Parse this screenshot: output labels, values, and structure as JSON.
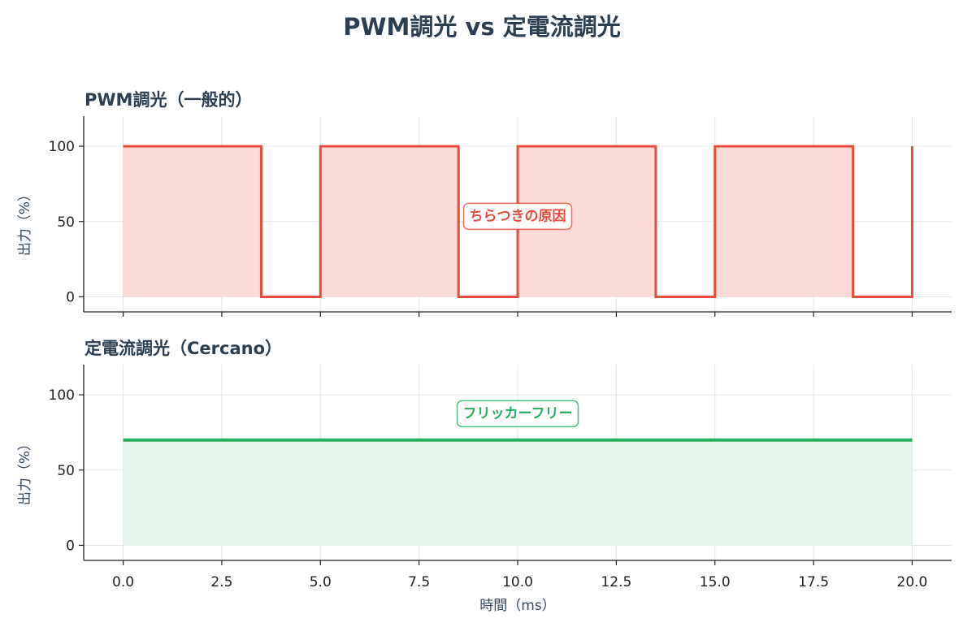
{
  "figure": {
    "title": "PWM調光 vs 定電流調光"
  },
  "chart_data": [
    {
      "type": "line",
      "title": "PWM調光（一般的）",
      "xlabel": "",
      "ylabel": "出力（%）",
      "xlim": [
        -1.0,
        21.0
      ],
      "ylim": [
        -10,
        120
      ],
      "xticks": [
        0.0,
        2.5,
        5.0,
        7.5,
        10.0,
        12.5,
        15.0,
        17.5,
        20.0
      ],
      "yticks": [
        0,
        50,
        100
      ],
      "ytick_labels": [
        "0",
        "50",
        "100"
      ],
      "grid": true,
      "series": [
        {
          "color": "#e74c3c",
          "fill": true,
          "fill_color": "#fadbd8",
          "step": true,
          "x": [
            0,
            3.5,
            3.5,
            5,
            5,
            8.5,
            8.5,
            10,
            10,
            13.5,
            13.5,
            15,
            15,
            18.5,
            18.5,
            20,
            20
          ],
          "y": [
            100,
            100,
            0,
            0,
            100,
            100,
            0,
            0,
            100,
            100,
            0,
            0,
            100,
            100,
            0,
            0,
            100
          ]
        }
      ],
      "annotation": {
        "text": "ちらつきの原因",
        "x": 10,
        "y": 54,
        "color": "#e74c3c"
      }
    },
    {
      "type": "line",
      "title": "定電流調光（Cercano）",
      "xlabel": "時間（ms）",
      "ylabel": "出力（%）",
      "xlim": [
        -1.0,
        21.0
      ],
      "ylim": [
        -10,
        120
      ],
      "xticks": [
        0.0,
        2.5,
        5.0,
        7.5,
        10.0,
        12.5,
        15.0,
        17.5,
        20.0
      ],
      "xtick_labels": [
        "0.0",
        "2.5",
        "5.0",
        "7.5",
        "10.0",
        "12.5",
        "15.0",
        "17.5",
        "20.0"
      ],
      "yticks": [
        0,
        50,
        100
      ],
      "ytick_labels": [
        "0",
        "50",
        "100"
      ],
      "grid": true,
      "series": [
        {
          "color": "#27ae60",
          "fill": true,
          "fill_color": "#e6f5ec",
          "step": false,
          "x": [
            0,
            20
          ],
          "y": [
            70,
            70
          ]
        }
      ],
      "annotation": {
        "text": "フリッカーフリー",
        "x": 10,
        "y": 88,
        "color": "#27ae60"
      }
    }
  ]
}
